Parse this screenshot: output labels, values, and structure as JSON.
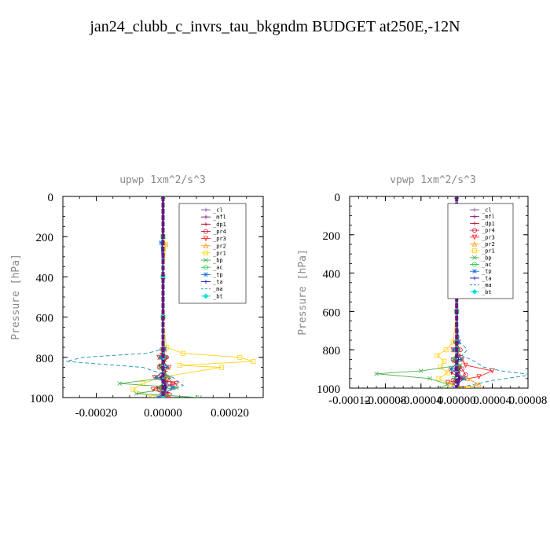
{
  "figure": {
    "title": "jan24_clubb_c_invrs_tau_bkgndm  BUDGET at250E,-12N"
  },
  "chart_data": [
    {
      "type": "line",
      "title": "upwp  1xm^2/s^3",
      "ylabel": "Pressure [hPa]",
      "xlabel": "",
      "xlim": [
        -0.0003,
        0.0003
      ],
      "ylim": [
        1000,
        0
      ],
      "y_inverted": true,
      "x_ticks": [
        -0.0002,
        0.0,
        0.0002
      ],
      "x_tick_labels": [
        "-0.00020",
        "0.00000",
        "0.00020"
      ],
      "y_ticks": [
        0,
        200,
        400,
        600,
        800,
        1000
      ],
      "y_tick_labels": [
        "0",
        "200",
        "400",
        "600",
        "800",
        "1000"
      ],
      "legend_placement": "top-right",
      "grid": false,
      "series": [
        {
          "name": "_cl",
          "color": "#7b4fa0",
          "marker": "+",
          "y": [
            0,
            200,
            400,
            600,
            760,
            800,
            850,
            900,
            950,
            1000
          ],
          "x": [
            0,
            0,
            0,
            0,
            2e-06,
            4e-06,
            -3e-06,
            4e-06,
            -6e-06,
            3e-06
          ]
        },
        {
          "name": "_mfl",
          "color": "#7a0e7a",
          "marker": "+",
          "y": [
            0,
            200,
            400,
            600,
            760,
            800,
            850,
            900,
            950,
            1000
          ],
          "x": [
            0,
            0,
            0,
            0,
            0,
            3e-06,
            -3e-06,
            5e-06,
            8e-06,
            2e-06
          ]
        },
        {
          "name": "_dp1",
          "color": "#b0102a",
          "marker": "+",
          "y": [
            0,
            200,
            400,
            600,
            760,
            780,
            800,
            820,
            840,
            870,
            900,
            920,
            950,
            975,
            1000
          ],
          "x": [
            0,
            0,
            0,
            0,
            2e-06,
            -4e-06,
            1.2e-05,
            5e-06,
            -1.2e-05,
            8e-06,
            -1e-05,
            1.5e-05,
            -1.8e-05,
            1.5e-05,
            -1e-05
          ]
        },
        {
          "name": "_pr4",
          "color": "#d81b4a",
          "marker": "o",
          "y": [
            0,
            200,
            400,
            600,
            760,
            800,
            850,
            900,
            930,
            960,
            1000
          ],
          "x": [
            0,
            0,
            0,
            0,
            -3e-06,
            1e-05,
            -1e-05,
            1.5e-05,
            2.8e-05,
            -1e-05,
            1e-05
          ]
        },
        {
          "name": "_pr3",
          "color": "#ff2020",
          "marker": "v",
          "y": [
            0,
            200,
            400,
            600,
            760,
            800,
            850,
            900,
            930,
            960,
            990,
            1000
          ],
          "x": [
            0,
            0,
            0,
            0,
            4e-06,
            -1.2e-05,
            1.8e-05,
            -2.5e-05,
            4e-05,
            -3e-05,
            2e-05,
            5e-06
          ]
        },
        {
          "name": "_pr2",
          "color": "#ff9a1a",
          "marker": "^",
          "y": [
            0,
            200,
            240,
            400,
            600,
            760,
            800,
            850,
            900,
            950,
            1000
          ],
          "x": [
            0,
            0,
            8e-06,
            0,
            0,
            5e-06,
            -1e-05,
            1.5e-05,
            -2e-05,
            3e-05,
            -1.5e-05
          ]
        },
        {
          "name": "_pr1",
          "color": "#ffd21a",
          "marker": "s",
          "y": [
            0,
            200,
            240,
            400,
            600,
            750,
            780,
            800,
            820,
            840,
            850,
            900,
            930,
            960,
            1000
          ],
          "x": [
            0,
            0,
            8e-06,
            0,
            0,
            1e-05,
            6e-05,
            0.00023,
            0.00027,
            5e-05,
            0.000175,
            -1e-05,
            -6e-05,
            -9e-05,
            -3e-05
          ]
        },
        {
          "name": "_bp",
          "color": "#4caf50",
          "marker": "x",
          "y": [
            0,
            200,
            400,
            600,
            760,
            800,
            850,
            900,
            930,
            950,
            980,
            1000
          ],
          "x": [
            0,
            0,
            0,
            0,
            0,
            5e-06,
            -1e-05,
            2e-05,
            -0.00013,
            4e-05,
            -8e-05,
            0.00011
          ]
        },
        {
          "name": "_ac",
          "color": "#2ecc40",
          "marker": "o",
          "y": [
            0,
            200,
            400,
            600,
            760,
            800,
            850,
            900,
            950,
            1000
          ],
          "x": [
            0,
            0,
            0,
            0,
            0,
            3e-06,
            -4e-06,
            5e-06,
            -8e-06,
            6e-06
          ]
        },
        {
          "name": "_tp",
          "color": "#1a73d8",
          "marker": "*",
          "y": [
            0,
            200,
            230,
            400,
            600,
            760,
            800,
            850,
            900,
            950,
            1000
          ],
          "x": [
            0,
            0,
            -6e-06,
            0,
            0,
            4e-06,
            -8e-06,
            1.2e-05,
            -2e-05,
            3e-05,
            -1.5e-05
          ]
        },
        {
          "name": "_ta",
          "color": "#1a1aa8",
          "marker": "+",
          "y": [
            0,
            200,
            400,
            600,
            760,
            800,
            850,
            900,
            950,
            1000
          ],
          "x": [
            0,
            0,
            0,
            0,
            0,
            -4e-06,
            4e-06,
            -6e-06,
            8e-06,
            -4e-06
          ]
        },
        {
          "name": "_ma",
          "color": "#1a8fb0",
          "marker": "none",
          "dash": "5,3",
          "y": [
            0,
            200,
            400,
            600,
            760,
            780,
            800,
            820,
            850,
            900,
            940,
            960,
            980,
            1000
          ],
          "x": [
            0,
            0,
            0,
            0,
            2e-06,
            -5e-05,
            -0.00024,
            -0.00029,
            -6e-05,
            3e-05,
            6e-05,
            3e-05,
            -1e-05,
            2e-05
          ]
        },
        {
          "name": "_bt",
          "color": "#00e0e0",
          "marker": "D",
          "y": [
            0,
            200,
            400,
            600,
            800,
            1000
          ],
          "x": [
            0,
            0,
            0,
            0,
            0,
            0
          ]
        }
      ]
    },
    {
      "type": "line",
      "title": "vpwp  1xm^2/s^3",
      "ylabel": "Pressure [hPa]",
      "xlabel": "",
      "xlim": [
        -0.00012,
        8e-05
      ],
      "ylim": [
        1000,
        0
      ],
      "y_inverted": true,
      "x_ticks": [
        -0.00012,
        -8e-05,
        -4e-05,
        0.0,
        4e-05,
        8e-05
      ],
      "x_tick_labels": [
        "-0.00012",
        "-0.00008",
        "-0.00004",
        "0.00000",
        "0.00004",
        "0.00008"
      ],
      "y_ticks": [
        0,
        200,
        400,
        600,
        800,
        1000
      ],
      "y_tick_labels": [
        "0",
        "200",
        "400",
        "600",
        "800",
        "1000"
      ],
      "legend_placement": "top-right",
      "grid": false,
      "series": [
        {
          "name": "_cl",
          "color": "#7b4fa0",
          "marker": "+",
          "y": [
            0,
            200,
            400,
            600,
            760,
            800,
            850,
            900,
            950,
            1000
          ],
          "x": [
            0,
            0,
            0,
            0,
            5e-07,
            1e-06,
            -1e-06,
            1e-06,
            -2e-06,
            1e-06
          ]
        },
        {
          "name": "_mfl",
          "color": "#7a0e7a",
          "marker": "+",
          "y": [
            0,
            200,
            400,
            600,
            760,
            800,
            850,
            900,
            950,
            1000
          ],
          "x": [
            0,
            0,
            0,
            0,
            0,
            1e-06,
            -1e-06,
            2e-06,
            3e-06,
            1e-06
          ]
        },
        {
          "name": "_dp1",
          "color": "#b0102a",
          "marker": "+",
          "y": [
            0,
            200,
            400,
            600,
            760,
            800,
            830,
            860,
            890,
            920,
            950,
            980,
            1000
          ],
          "x": [
            0,
            0,
            0,
            0,
            2e-06,
            -3e-06,
            4e-06,
            -4e-06,
            5e-06,
            -6e-06,
            7e-06,
            -4e-06,
            2e-06
          ]
        },
        {
          "name": "_pr4",
          "color": "#d81b4a",
          "marker": "o",
          "y": [
            0,
            200,
            400,
            600,
            760,
            800,
            850,
            900,
            930,
            960,
            1000
          ],
          "x": [
            0,
            0,
            0,
            0,
            -1e-06,
            4e-06,
            -4e-06,
            6e-06,
            1e-05,
            -4e-06,
            4e-06
          ]
        },
        {
          "name": "_pr3",
          "color": "#ff2020",
          "marker": "v",
          "y": [
            0,
            200,
            400,
            600,
            760,
            800,
            850,
            880,
            910,
            940,
            970,
            1000
          ],
          "x": [
            0,
            0,
            0,
            0,
            2e-06,
            -4e-06,
            6e-06,
            1e-05,
            4e-05,
            2.5e-05,
            -1e-05,
            6e-06
          ]
        },
        {
          "name": "_pr2",
          "color": "#ff9a1a",
          "marker": "^",
          "y": [
            0,
            200,
            400,
            600,
            760,
            800,
            850,
            900,
            950,
            980,
            1000
          ],
          "x": [
            0,
            0,
            0,
            0,
            2e-06,
            -4e-06,
            6e-06,
            -8e-06,
            1.2e-05,
            2.5e-05,
            1e-05
          ]
        },
        {
          "name": "_pr1",
          "color": "#ffd21a",
          "marker": "s",
          "y": [
            0,
            150,
            200,
            240,
            400,
            600,
            760,
            800,
            830,
            860,
            890,
            920,
            950,
            980,
            1000
          ],
          "x": [
            0,
            2e-06,
            4e-06,
            3e-06,
            0,
            0,
            -4e-06,
            -1.2e-05,
            -2.2e-05,
            -1.4e-05,
            -1.8e-05,
            -1e-05,
            -2e-05,
            -8e-06,
            1.5e-05
          ]
        },
        {
          "name": "_bp",
          "color": "#4caf50",
          "marker": "x",
          "y": [
            0,
            200,
            400,
            600,
            760,
            800,
            850,
            880,
            910,
            925,
            950,
            980,
            1000
          ],
          "x": [
            0,
            0,
            0,
            0,
            0,
            2e-06,
            -4e-06,
            4e-06,
            -4e-05,
            -9e-05,
            -3e-05,
            -1e-05,
            -2e-05
          ]
        },
        {
          "name": "_ac",
          "color": "#2ecc40",
          "marker": "o",
          "y": [
            0,
            200,
            400,
            600,
            760,
            800,
            850,
            900,
            950,
            1000
          ],
          "x": [
            0,
            0,
            0,
            0,
            0,
            1e-06,
            -2e-06,
            2e-06,
            -3e-06,
            2e-06
          ]
        },
        {
          "name": "_tp",
          "color": "#1a73d8",
          "marker": "*",
          "y": [
            0,
            180,
            200,
            220,
            400,
            600,
            760,
            800,
            850,
            900,
            950,
            1000
          ],
          "x": [
            0,
            -3e-06,
            -4e-06,
            -2e-06,
            0,
            0,
            2e-06,
            -3e-06,
            5e-06,
            -6e-06,
            8e-06,
            -3e-06
          ]
        },
        {
          "name": "_ta",
          "color": "#1a1aa8",
          "marker": "+",
          "y": [
            0,
            200,
            400,
            600,
            760,
            800,
            850,
            900,
            950,
            1000
          ],
          "x": [
            0,
            0,
            0,
            0,
            0,
            -1e-06,
            2e-06,
            -2e-06,
            3e-06,
            -1e-06
          ]
        },
        {
          "name": "_ma",
          "color": "#1a8fb0",
          "marker": "none",
          "dash": "5,3",
          "y": [
            0,
            200,
            400,
            600,
            760,
            780,
            800,
            830,
            860,
            890,
            910,
            930,
            960,
            990,
            1000
          ],
          "x": [
            0,
            0,
            0,
            0,
            3e-06,
            8e-06,
            1.2e-05,
            6e-06,
            2e-05,
            3e-05,
            5e-05,
            8.5e-05,
            4e-05,
            1e-05,
            5e-06
          ]
        },
        {
          "name": "_bt",
          "color": "#00e0e0",
          "marker": "D",
          "y": [
            0,
            200,
            400,
            600,
            800,
            1000
          ],
          "x": [
            0,
            0,
            0,
            0,
            0,
            0
          ]
        }
      ]
    }
  ]
}
